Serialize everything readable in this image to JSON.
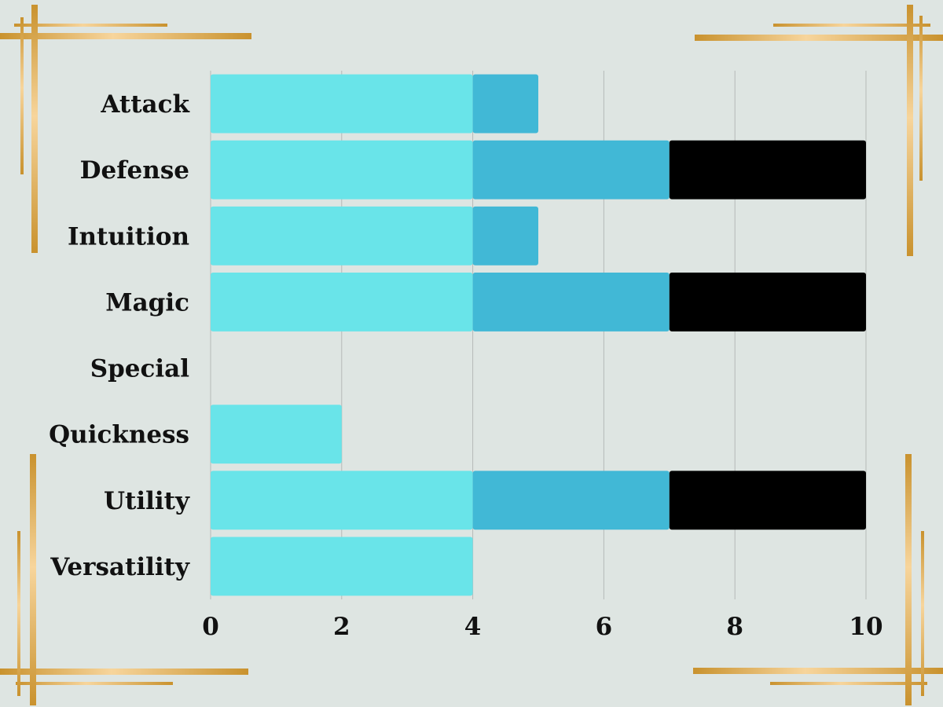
{
  "chart_data": {
    "type": "bar",
    "orientation": "horizontal",
    "stacked": true,
    "categories": [
      "Attack",
      "Defense",
      "Intuition",
      "Magic",
      "Special",
      "Quickness",
      "Utility",
      "Versatility"
    ],
    "series": [
      {
        "values": [
          4,
          4,
          4,
          4,
          0,
          2,
          4,
          4
        ],
        "color": "#69e4e9"
      },
      {
        "values": [
          1,
          3,
          1,
          3,
          0,
          0,
          3,
          0
        ],
        "color": "#41b8d6"
      },
      {
        "values": [
          0,
          3,
          0,
          3,
          0,
          0,
          3,
          0
        ],
        "color": "#000000"
      }
    ],
    "xlim": [
      0,
      10
    ],
    "xticks": [
      "0",
      "2",
      "4",
      "6",
      "8",
      "10"
    ],
    "grid": "vertical",
    "legend": "none"
  },
  "colors": {
    "background": "#dee5e2",
    "gridline": "#b5bab8",
    "frame_gold": "#d9a84c",
    "frame_gold_light": "#f7d59c"
  }
}
